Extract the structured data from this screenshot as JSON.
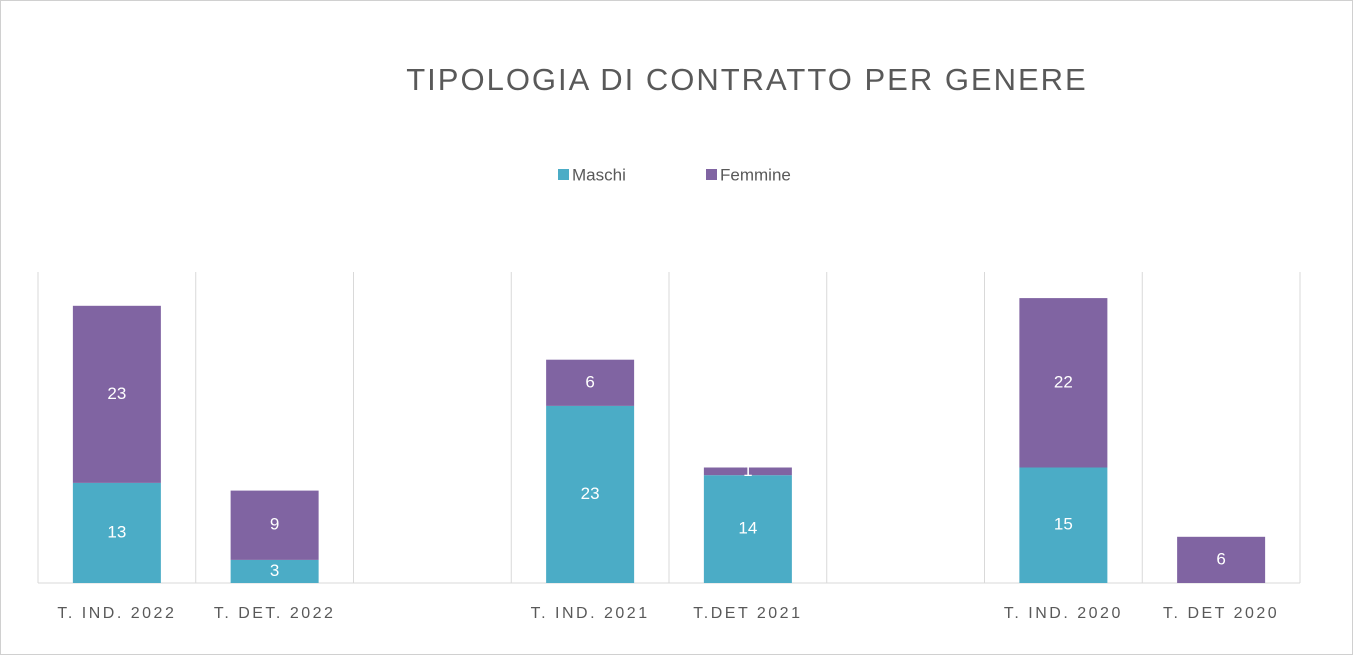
{
  "chart_data": {
    "type": "stacked_bar",
    "title": "TIPOLOGIA DI CONTRATTO PER GENERE",
    "categories": [
      "T. IND. 2022",
      "T. DET. 2022",
      null,
      "T. IND. 2021",
      "T.DET 2021",
      null,
      "T. IND. 2020",
      "T. DET 2020"
    ],
    "series": [
      {
        "name": "Maschi",
        "color": "#4bacc6",
        "values": [
          13,
          3,
          null,
          23,
          14,
          null,
          15,
          null
        ]
      },
      {
        "name": "Femmine",
        "color": "#8064a2",
        "values": [
          23,
          9,
          null,
          6,
          1,
          null,
          22,
          6
        ]
      }
    ],
    "grid": true,
    "legend": "top"
  }
}
